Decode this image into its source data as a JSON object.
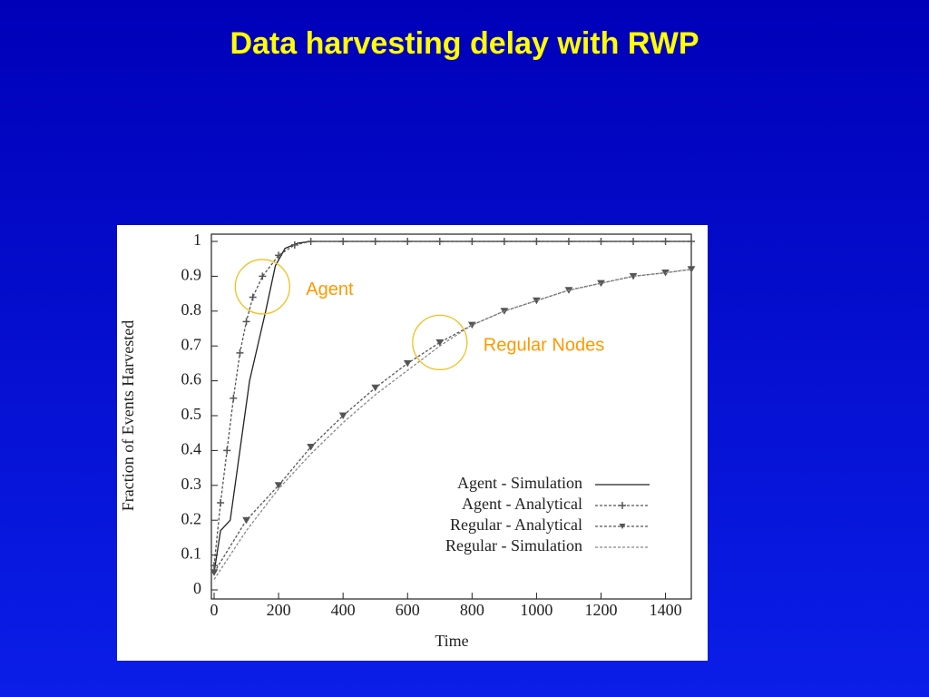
{
  "chart_data": {
    "type": "line",
    "title": "Data harvesting delay with RWP",
    "xlabel": "Time",
    "ylabel": "Fraction of Events Harvested",
    "xlim": [
      0,
      1480
    ],
    "ylim": [
      0,
      1
    ],
    "xticks": [
      0,
      200,
      400,
      600,
      800,
      1000,
      1200,
      1400
    ],
    "yticks": [
      0,
      0.1,
      0.2,
      0.3,
      0.4,
      0.5,
      0.6,
      0.7,
      0.8,
      0.9,
      1
    ],
    "legend": "lower-right",
    "series": [
      {
        "name": "Agent - Simulation",
        "color": "#222222",
        "dash": false,
        "marker": "none",
        "x": [
          0,
          20,
          50,
          80,
          110,
          140,
          160,
          190,
          220,
          260,
          300,
          1480
        ],
        "values": [
          0.05,
          0.17,
          0.2,
          0.4,
          0.6,
          0.72,
          0.8,
          0.93,
          0.98,
          0.995,
          1,
          1
        ]
      },
      {
        "name": "Agent - Analytical",
        "color": "#555555",
        "dash": true,
        "marker": "plus",
        "x": [
          0,
          20,
          40,
          60,
          80,
          100,
          120,
          150,
          200,
          250,
          300,
          400,
          500,
          600,
          700,
          800,
          900,
          1000,
          1100,
          1200,
          1300,
          1400,
          1480
        ],
        "values": [
          0.07,
          0.25,
          0.4,
          0.55,
          0.68,
          0.77,
          0.84,
          0.9,
          0.96,
          0.99,
          1,
          1,
          1,
          1,
          1,
          1,
          1,
          1,
          1,
          1,
          1,
          1,
          1
        ]
      },
      {
        "name": "Regular - Analytical",
        "color": "#555555",
        "dash": true,
        "marker": "triangle",
        "x": [
          0,
          100,
          200,
          300,
          400,
          500,
          600,
          700,
          800,
          900,
          1000,
          1100,
          1200,
          1300,
          1400,
          1480
        ],
        "values": [
          0.05,
          0.2,
          0.3,
          0.41,
          0.5,
          0.58,
          0.65,
          0.71,
          0.76,
          0.8,
          0.83,
          0.86,
          0.88,
          0.9,
          0.91,
          0.92
        ]
      },
      {
        "name": "Regular - Simulation",
        "color": "#888888",
        "dash": true,
        "marker": "none",
        "x": [
          0,
          100,
          200,
          300,
          400,
          500,
          600,
          700,
          800,
          900,
          1000,
          1100,
          1200,
          1300,
          1400,
          1480
        ],
        "values": [
          0.03,
          0.17,
          0.29,
          0.39,
          0.48,
          0.56,
          0.63,
          0.7,
          0.76,
          0.8,
          0.83,
          0.86,
          0.88,
          0.9,
          0.91,
          0.92
        ]
      }
    ],
    "annotations": [
      {
        "text": "Agent",
        "x": 150,
        "y": 0.87
      },
      {
        "text": "Regular Nodes",
        "x": 700,
        "y": 0.71
      }
    ]
  }
}
